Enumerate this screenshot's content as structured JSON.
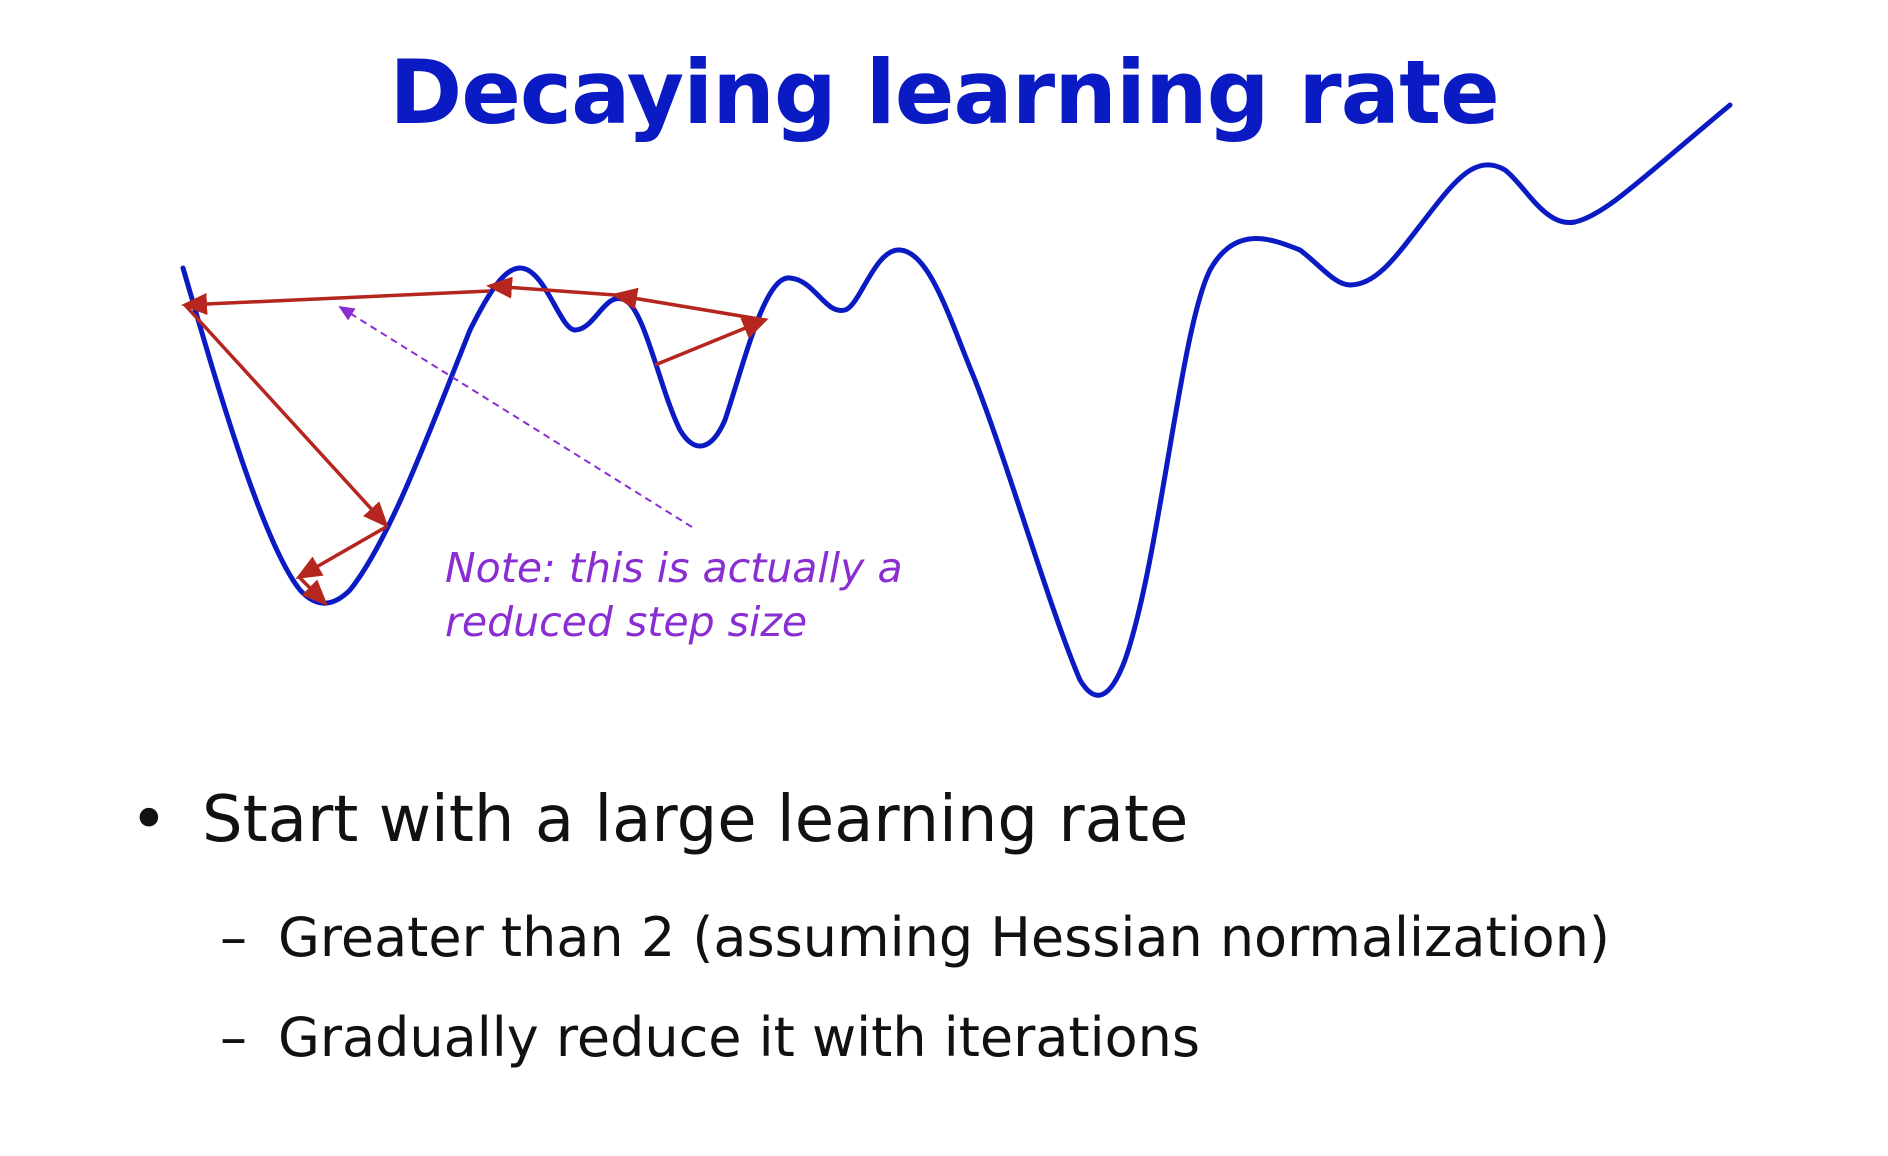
{
  "title": "Decaying learning rate",
  "diagram": {
    "note_line1": "Note: this is actually a",
    "note_line2": "reduced step size",
    "curve_color": "#0a1bc4",
    "arrow_color": "#b5261e",
    "note_color": "#8a2ed2"
  },
  "bullets": {
    "main": "Start with a large learning rate",
    "bullet_glyph": "•",
    "sub_dash": "–",
    "sub_items": [
      "Greater than 2 (assuming Hessian normalization)",
      "Gradually reduce it with iterations"
    ]
  }
}
